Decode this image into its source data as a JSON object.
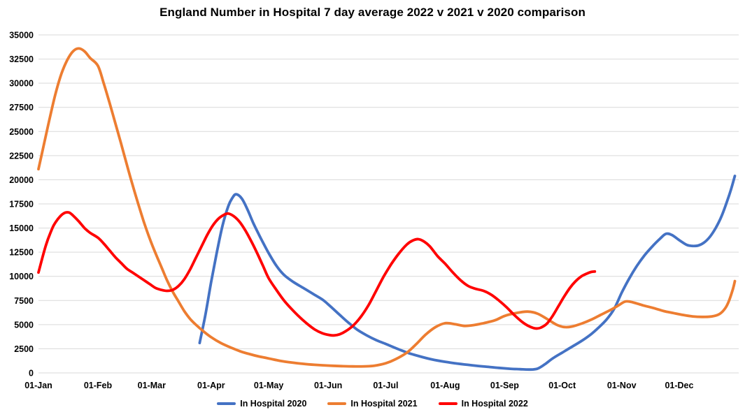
{
  "chart_data": {
    "type": "line",
    "title": "England Number in Hospital 7 day average 2022 v 2021 v 2020 comparison",
    "xlabel": "",
    "ylabel": "",
    "ylim": [
      0,
      35000
    ],
    "x_range": [
      0,
      365
    ],
    "grid": true,
    "grid_color": "#D9D9D9",
    "text_color": "#000000",
    "legend_position": "bottom",
    "y_ticks": [
      0,
      2500,
      5000,
      7500,
      10000,
      12500,
      15000,
      17500,
      20000,
      22500,
      25000,
      27500,
      30000,
      32500,
      35000
    ],
    "x_tick_labels": [
      "01-Jan",
      "01-Feb",
      "01-Mar",
      "01-Apr",
      "01-May",
      "01-Jun",
      "01-Jul",
      "01-Aug",
      "01-Sep",
      "01-Oct",
      "01-Nov",
      "01-Dec"
    ],
    "x_tick_days": [
      0,
      31,
      59,
      90,
      120,
      151,
      181,
      212,
      243,
      273,
      304,
      334
    ],
    "series": [
      {
        "name": "In Hospital 2020",
        "color": "#4472C4",
        "points": [
          [
            84,
            3100
          ],
          [
            87,
            6000
          ],
          [
            90,
            9400
          ],
          [
            93,
            12500
          ],
          [
            96,
            15300
          ],
          [
            99,
            17300
          ],
          [
            101,
            18100
          ],
          [
            103,
            18500
          ],
          [
            106,
            18050
          ],
          [
            109,
            16900
          ],
          [
            112,
            15500
          ],
          [
            116,
            13900
          ],
          [
            120,
            12400
          ],
          [
            124,
            11100
          ],
          [
            128,
            10150
          ],
          [
            133,
            9400
          ],
          [
            138,
            8800
          ],
          [
            143,
            8200
          ],
          [
            148,
            7600
          ],
          [
            151,
            7100
          ],
          [
            156,
            6200
          ],
          [
            161,
            5300
          ],
          [
            166,
            4500
          ],
          [
            171,
            3900
          ],
          [
            176,
            3400
          ],
          [
            181,
            3000
          ],
          [
            187,
            2500
          ],
          [
            193,
            2050
          ],
          [
            199,
            1700
          ],
          [
            205,
            1400
          ],
          [
            212,
            1150
          ],
          [
            219,
            950
          ],
          [
            226,
            790
          ],
          [
            233,
            650
          ],
          [
            240,
            520
          ],
          [
            246,
            430
          ],
          [
            251,
            380
          ],
          [
            256,
            345
          ],
          [
            260,
            430
          ],
          [
            264,
            900
          ],
          [
            268,
            1500
          ],
          [
            273,
            2100
          ],
          [
            278,
            2700
          ],
          [
            283,
            3300
          ],
          [
            288,
            4000
          ],
          [
            292,
            4700
          ],
          [
            296,
            5500
          ],
          [
            300,
            6600
          ],
          [
            304,
            8300
          ],
          [
            308,
            9800
          ],
          [
            312,
            11100
          ],
          [
            316,
            12200
          ],
          [
            320,
            13100
          ],
          [
            324,
            13900
          ],
          [
            327,
            14400
          ],
          [
            330,
            14300
          ],
          [
            334,
            13750
          ],
          [
            338,
            13250
          ],
          [
            341,
            13150
          ],
          [
            344,
            13200
          ],
          [
            347,
            13500
          ],
          [
            350,
            14100
          ],
          [
            353,
            15000
          ],
          [
            356,
            16200
          ],
          [
            359,
            17800
          ],
          [
            361,
            19000
          ],
          [
            363,
            20400
          ]
        ]
      },
      {
        "name": "In Hospital 2021",
        "color": "#ED7D31",
        "points": [
          [
            0,
            21100
          ],
          [
            3,
            23800
          ],
          [
            6,
            26500
          ],
          [
            9,
            29000
          ],
          [
            12,
            31000
          ],
          [
            15,
            32400
          ],
          [
            18,
            33300
          ],
          [
            21,
            33600
          ],
          [
            24,
            33300
          ],
          [
            27,
            32600
          ],
          [
            31,
            31800
          ],
          [
            34,
            30000
          ],
          [
            37,
            28000
          ],
          [
            40,
            25900
          ],
          [
            43,
            23800
          ],
          [
            46,
            21600
          ],
          [
            49,
            19500
          ],
          [
            52,
            17500
          ],
          [
            55,
            15600
          ],
          [
            58,
            13900
          ],
          [
            61,
            12400
          ],
          [
            64,
            11000
          ],
          [
            67,
            9600
          ],
          [
            70,
            8400
          ],
          [
            73,
            7400
          ],
          [
            76,
            6400
          ],
          [
            79,
            5600
          ],
          [
            82,
            5000
          ],
          [
            86,
            4300
          ],
          [
            90,
            3700
          ],
          [
            95,
            3100
          ],
          [
            100,
            2650
          ],
          [
            105,
            2250
          ],
          [
            110,
            1950
          ],
          [
            115,
            1700
          ],
          [
            120,
            1500
          ],
          [
            126,
            1250
          ],
          [
            132,
            1080
          ],
          [
            138,
            940
          ],
          [
            144,
            840
          ],
          [
            151,
            760
          ],
          [
            158,
            700
          ],
          [
            164,
            670
          ],
          [
            170,
            680
          ],
          [
            175,
            740
          ],
          [
            181,
            1000
          ],
          [
            186,
            1400
          ],
          [
            192,
            2100
          ],
          [
            197,
            3000
          ],
          [
            202,
            4000
          ],
          [
            207,
            4750
          ],
          [
            212,
            5150
          ],
          [
            217,
            5050
          ],
          [
            222,
            4870
          ],
          [
            227,
            4950
          ],
          [
            232,
            5150
          ],
          [
            238,
            5450
          ],
          [
            243,
            5900
          ],
          [
            249,
            6200
          ],
          [
            255,
            6350
          ],
          [
            260,
            6150
          ],
          [
            265,
            5600
          ],
          [
            270,
            5000
          ],
          [
            274,
            4750
          ],
          [
            278,
            4800
          ],
          [
            283,
            5100
          ],
          [
            288,
            5500
          ],
          [
            293,
            6000
          ],
          [
            298,
            6500
          ],
          [
            302,
            6950
          ],
          [
            306,
            7400
          ],
          [
            310,
            7300
          ],
          [
            315,
            7000
          ],
          [
            320,
            6750
          ],
          [
            326,
            6400
          ],
          [
            331,
            6200
          ],
          [
            336,
            6000
          ],
          [
            341,
            5850
          ],
          [
            346,
            5800
          ],
          [
            351,
            5850
          ],
          [
            355,
            6100
          ],
          [
            358,
            6700
          ],
          [
            360,
            7500
          ],
          [
            362,
            8700
          ],
          [
            363,
            9500
          ]
        ]
      },
      {
        "name": "In Hospital 2022",
        "color": "#FF0000",
        "points": [
          [
            0,
            10400
          ],
          [
            2,
            11900
          ],
          [
            4,
            13300
          ],
          [
            6,
            14400
          ],
          [
            8,
            15300
          ],
          [
            10,
            15900
          ],
          [
            12,
            16350
          ],
          [
            14,
            16600
          ],
          [
            16,
            16600
          ],
          [
            18,
            16300
          ],
          [
            21,
            15700
          ],
          [
            24,
            15000
          ],
          [
            27,
            14500
          ],
          [
            31,
            14000
          ],
          [
            34,
            13400
          ],
          [
            37,
            12700
          ],
          [
            40,
            12000
          ],
          [
            43,
            11400
          ],
          [
            46,
            10800
          ],
          [
            49,
            10400
          ],
          [
            52,
            10000
          ],
          [
            55,
            9600
          ],
          [
            58,
            9200
          ],
          [
            61,
            8800
          ],
          [
            64,
            8600
          ],
          [
            67,
            8500
          ],
          [
            70,
            8600
          ],
          [
            73,
            9000
          ],
          [
            76,
            9700
          ],
          [
            79,
            10700
          ],
          [
            82,
            11900
          ],
          [
            85,
            13100
          ],
          [
            88,
            14300
          ],
          [
            91,
            15300
          ],
          [
            94,
            16000
          ],
          [
            97,
            16400
          ],
          [
            99,
            16500
          ],
          [
            102,
            16200
          ],
          [
            105,
            15600
          ],
          [
            108,
            14700
          ],
          [
            111,
            13600
          ],
          [
            114,
            12400
          ],
          [
            117,
            11100
          ],
          [
            120,
            9800
          ],
          [
            124,
            8600
          ],
          [
            128,
            7500
          ],
          [
            132,
            6600
          ],
          [
            136,
            5800
          ],
          [
            140,
            5100
          ],
          [
            144,
            4500
          ],
          [
            148,
            4100
          ],
          [
            151,
            3950
          ],
          [
            154,
            3880
          ],
          [
            157,
            4000
          ],
          [
            160,
            4300
          ],
          [
            164,
            4900
          ],
          [
            168,
            5800
          ],
          [
            172,
            7000
          ],
          [
            176,
            8500
          ],
          [
            180,
            10000
          ],
          [
            184,
            11300
          ],
          [
            188,
            12400
          ],
          [
            192,
            13300
          ],
          [
            195,
            13700
          ],
          [
            198,
            13850
          ],
          [
            201,
            13600
          ],
          [
            204,
            13100
          ],
          [
            208,
            12100
          ],
          [
            212,
            11300
          ],
          [
            216,
            10400
          ],
          [
            220,
            9600
          ],
          [
            224,
            9000
          ],
          [
            228,
            8700
          ],
          [
            232,
            8500
          ],
          [
            236,
            8100
          ],
          [
            240,
            7500
          ],
          [
            244,
            6800
          ],
          [
            248,
            6000
          ],
          [
            252,
            5300
          ],
          [
            255,
            4900
          ],
          [
            258,
            4650
          ],
          [
            260,
            4600
          ],
          [
            262,
            4700
          ],
          [
            265,
            5100
          ],
          [
            268,
            5900
          ],
          [
            271,
            6900
          ],
          [
            274,
            7900
          ],
          [
            277,
            8800
          ],
          [
            280,
            9500
          ],
          [
            283,
            10000
          ],
          [
            286,
            10300
          ],
          [
            288,
            10450
          ],
          [
            290,
            10500
          ]
        ]
      }
    ]
  }
}
